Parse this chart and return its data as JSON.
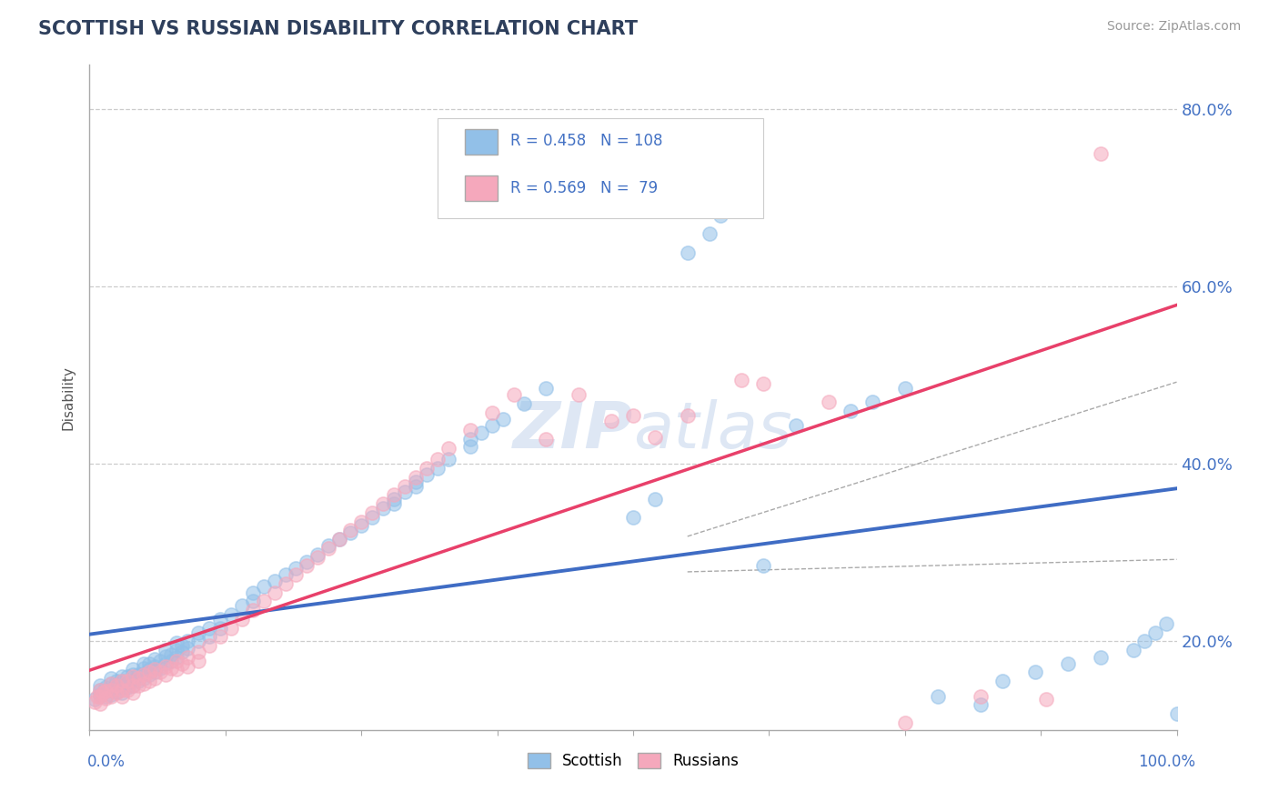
{
  "title": "SCOTTISH VS RUSSIAN DISABILITY CORRELATION CHART",
  "source": "Source: ZipAtlas.com",
  "ylabel": "Disability",
  "xlim": [
    0.0,
    1.0
  ],
  "ylim": [
    0.1,
    0.85
  ],
  "yticks": [
    0.2,
    0.4,
    0.6,
    0.8
  ],
  "ytick_labels": [
    "20.0%",
    "40.0%",
    "60.0%",
    "80.0%"
  ],
  "scottish_color": "#92C0E8",
  "russian_color": "#F5A8BC",
  "line_scottish_color": "#3F6CC4",
  "line_russian_color": "#E8406A",
  "title_color": "#2E3F5C",
  "axis_label_color": "#4472C4",
  "scottish_x": [
    0.005,
    0.01,
    0.01,
    0.01,
    0.015,
    0.015,
    0.02,
    0.02,
    0.02,
    0.02,
    0.025,
    0.025,
    0.025,
    0.03,
    0.03,
    0.03,
    0.03,
    0.035,
    0.035,
    0.035,
    0.04,
    0.04,
    0.04,
    0.04,
    0.045,
    0.045,
    0.05,
    0.05,
    0.05,
    0.05,
    0.055,
    0.055,
    0.055,
    0.06,
    0.06,
    0.06,
    0.065,
    0.065,
    0.07,
    0.07,
    0.07,
    0.075,
    0.075,
    0.08,
    0.08,
    0.08,
    0.085,
    0.085,
    0.09,
    0.09,
    0.1,
    0.1,
    0.11,
    0.11,
    0.12,
    0.12,
    0.13,
    0.14,
    0.15,
    0.15,
    0.16,
    0.17,
    0.18,
    0.19,
    0.2,
    0.21,
    0.22,
    0.23,
    0.24,
    0.25,
    0.26,
    0.27,
    0.28,
    0.28,
    0.29,
    0.3,
    0.3,
    0.31,
    0.32,
    0.33,
    0.35,
    0.35,
    0.36,
    0.37,
    0.38,
    0.4,
    0.42,
    0.5,
    0.52,
    0.55,
    0.57,
    0.58,
    0.62,
    0.65,
    0.7,
    0.72,
    0.75,
    0.78,
    0.82,
    0.84,
    0.87,
    0.9,
    0.93,
    0.96,
    0.97,
    0.98,
    0.99,
    1.0
  ],
  "scottish_y": [
    0.135,
    0.14,
    0.145,
    0.15,
    0.138,
    0.148,
    0.14,
    0.145,
    0.152,
    0.158,
    0.143,
    0.15,
    0.155,
    0.142,
    0.148,
    0.155,
    0.16,
    0.148,
    0.153,
    0.16,
    0.15,
    0.155,
    0.162,
    0.168,
    0.155,
    0.162,
    0.158,
    0.163,
    0.17,
    0.175,
    0.162,
    0.168,
    0.175,
    0.165,
    0.172,
    0.18,
    0.17,
    0.178,
    0.175,
    0.183,
    0.19,
    0.178,
    0.185,
    0.182,
    0.19,
    0.198,
    0.188,
    0.195,
    0.192,
    0.2,
    0.2,
    0.21,
    0.205,
    0.215,
    0.215,
    0.225,
    0.23,
    0.24,
    0.245,
    0.255,
    0.262,
    0.268,
    0.275,
    0.282,
    0.29,
    0.298,
    0.308,
    0.315,
    0.322,
    0.33,
    0.34,
    0.35,
    0.355,
    0.36,
    0.368,
    0.375,
    0.38,
    0.388,
    0.395,
    0.405,
    0.42,
    0.428,
    0.435,
    0.443,
    0.45,
    0.468,
    0.485,
    0.34,
    0.36,
    0.638,
    0.66,
    0.68,
    0.285,
    0.443,
    0.46,
    0.47,
    0.485,
    0.138,
    0.128,
    0.155,
    0.165,
    0.175,
    0.182,
    0.19,
    0.2,
    0.21,
    0.22,
    0.118
  ],
  "russian_x": [
    0.005,
    0.007,
    0.01,
    0.01,
    0.01,
    0.012,
    0.015,
    0.015,
    0.02,
    0.02,
    0.02,
    0.025,
    0.025,
    0.03,
    0.03,
    0.03,
    0.035,
    0.035,
    0.04,
    0.04,
    0.04,
    0.045,
    0.045,
    0.05,
    0.05,
    0.055,
    0.055,
    0.06,
    0.06,
    0.065,
    0.07,
    0.07,
    0.075,
    0.08,
    0.08,
    0.085,
    0.09,
    0.09,
    0.1,
    0.1,
    0.11,
    0.12,
    0.13,
    0.14,
    0.15,
    0.16,
    0.17,
    0.18,
    0.19,
    0.2,
    0.21,
    0.22,
    0.23,
    0.24,
    0.25,
    0.26,
    0.27,
    0.28,
    0.29,
    0.3,
    0.31,
    0.32,
    0.33,
    0.35,
    0.37,
    0.39,
    0.42,
    0.45,
    0.48,
    0.5,
    0.52,
    0.55,
    0.6,
    0.62,
    0.68,
    0.75,
    0.82,
    0.88,
    0.93
  ],
  "russian_y": [
    0.132,
    0.138,
    0.13,
    0.138,
    0.145,
    0.142,
    0.136,
    0.144,
    0.138,
    0.145,
    0.152,
    0.142,
    0.15,
    0.138,
    0.145,
    0.155,
    0.145,
    0.155,
    0.142,
    0.15,
    0.16,
    0.15,
    0.158,
    0.152,
    0.162,
    0.155,
    0.165,
    0.158,
    0.168,
    0.165,
    0.162,
    0.172,
    0.17,
    0.168,
    0.178,
    0.175,
    0.172,
    0.182,
    0.178,
    0.188,
    0.195,
    0.205,
    0.215,
    0.225,
    0.235,
    0.245,
    0.255,
    0.265,
    0.275,
    0.285,
    0.295,
    0.305,
    0.315,
    0.325,
    0.335,
    0.345,
    0.355,
    0.365,
    0.375,
    0.385,
    0.395,
    0.405,
    0.418,
    0.438,
    0.458,
    0.478,
    0.428,
    0.478,
    0.448,
    0.455,
    0.43,
    0.455,
    0.495,
    0.49,
    0.47,
    0.108,
    0.138,
    0.135,
    0.75
  ],
  "scottish_R": 0.458,
  "scottish_N": 108,
  "russian_R": 0.569,
  "russian_N": 79
}
